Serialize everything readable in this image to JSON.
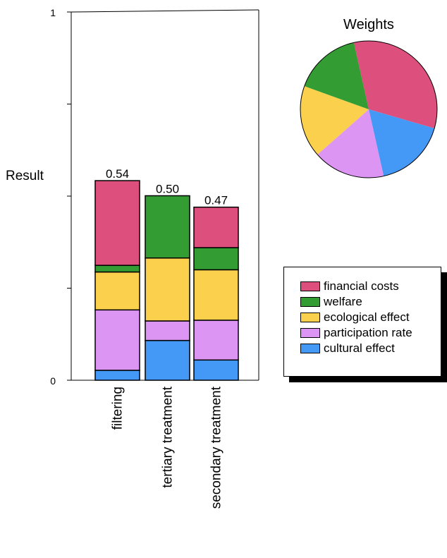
{
  "chart_data": [
    {
      "type": "bar",
      "stacked": true,
      "ylabel": "Result",
      "ylim": [
        0,
        1
      ],
      "yticks": [
        0,
        0.25,
        0.5,
        0.75,
        1
      ],
      "ytick_labels": [
        "0",
        "",
        "",
        "",
        "1"
      ],
      "categories": [
        "filtering",
        "tertiary treatment",
        "secondary treatment"
      ],
      "totals": [
        "0.54",
        "0.50",
        "0.47"
      ],
      "series": [
        {
          "name": "cultural effect",
          "color": "#4499f7",
          "values": [
            0.027,
            0.108,
            0.055
          ]
        },
        {
          "name": "participation rate",
          "color": "#dd95f3",
          "values": [
            0.164,
            0.053,
            0.108
          ]
        },
        {
          "name": "ecological effect",
          "color": "#fbd04d",
          "values": [
            0.103,
            0.171,
            0.137
          ]
        },
        {
          "name": "welfare",
          "color": "#339c33",
          "values": [
            0.018,
            0.169,
            0.06
          ]
        },
        {
          "name": "financial costs",
          "color": "#dd4f7c",
          "values": [
            0.23,
            0.0,
            0.11
          ]
        }
      ]
    },
    {
      "type": "pie",
      "title": "Weights",
      "slices": [
        {
          "name": "financial costs",
          "color": "#dd4f7c",
          "value": 0.33
        },
        {
          "name": "cultural effect",
          "color": "#4499f7",
          "value": 0.17
        },
        {
          "name": "participation rate",
          "color": "#dd95f3",
          "value": 0.17
        },
        {
          "name": "ecological effect",
          "color": "#fbd04d",
          "value": 0.17
        },
        {
          "name": "welfare",
          "color": "#339c33",
          "value": 0.16
        }
      ]
    }
  ],
  "legend": [
    {
      "label": "financial costs",
      "color": "#dd4f7c"
    },
    {
      "label": "welfare",
      "color": "#339c33"
    },
    {
      "label": "ecological effect",
      "color": "#fbd04d"
    },
    {
      "label": "participation rate",
      "color": "#dd95f3"
    },
    {
      "label": "cultural effect",
      "color": "#4499f7"
    }
  ]
}
